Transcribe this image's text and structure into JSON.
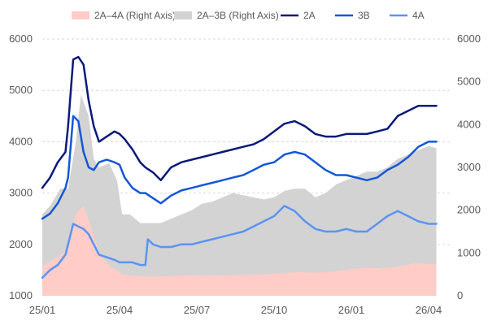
{
  "chart_data": {
    "type": "line",
    "x_ticks": [
      "25/01",
      "25/04",
      "25/07",
      "25/10",
      "26/01",
      "26/04"
    ],
    "y_left": {
      "min": 1000,
      "max": 6000,
      "ticks": [
        1000,
        2000,
        3000,
        4000,
        5000,
        6000
      ]
    },
    "y_right": {
      "min": 0,
      "max": 6000,
      "ticks": [
        0,
        1000,
        2000,
        3000,
        4000,
        5000,
        6000
      ]
    },
    "grid": "horizontal dashed",
    "legend_position": "top",
    "x_unit": "months from 25/01",
    "area_series": [
      {
        "name": "2A–4A (Right Axis)",
        "axis": "right",
        "color": "#ffccc7",
        "x": [
          0,
          0.3,
          0.6,
          1.0,
          1.3,
          1.6,
          1.9,
          2.2,
          2.6,
          2.9,
          3.1,
          3.5,
          4.0,
          4.5,
          5.0,
          5.5,
          6.0,
          6.5,
          7.0,
          7.5,
          8.0,
          8.5,
          9.0,
          9.5,
          10.0,
          10.5,
          11.0,
          11.5,
          12.0,
          12.5,
          13.0,
          13.5,
          14.0,
          14.5,
          15.0,
          15.3
        ],
        "values": [
          700,
          800,
          900,
          1100,
          1900,
          2100,
          1600,
          1000,
          700,
          600,
          500,
          470,
          450,
          450,
          460,
          480,
          470,
          470,
          480,
          480,
          490,
          500,
          520,
          540,
          550,
          540,
          550,
          580,
          620,
          650,
          640,
          660,
          700,
          760,
          740,
          740
        ]
      },
      {
        "name": "2A–3B (Right Axis)",
        "axis": "right",
        "color": "#d3d3d3",
        "x": [
          0,
          0.3,
          0.7,
          1.0,
          1.3,
          1.5,
          1.8,
          2.0,
          2.2,
          2.6,
          2.9,
          3.1,
          3.4,
          3.8,
          4.2,
          4.6,
          5.0,
          5.4,
          5.8,
          6.2,
          6.6,
          7.0,
          7.4,
          7.8,
          8.2,
          8.6,
          9.0,
          9.4,
          9.8,
          10.2,
          10.6,
          11.0,
          11.4,
          11.8,
          12.2,
          12.6,
          13.0,
          13.4,
          13.8,
          14.2,
          14.6,
          15.0,
          15.3
        ],
        "values": [
          1900,
          2100,
          2500,
          2500,
          3600,
          4700,
          4200,
          3200,
          3000,
          3100,
          2700,
          1900,
          1900,
          1700,
          1700,
          1700,
          1800,
          1900,
          2000,
          2150,
          2200,
          2300,
          2400,
          2350,
          2300,
          2250,
          2300,
          2450,
          2500,
          2500,
          2300,
          2400,
          2600,
          2700,
          2800,
          2900,
          2900,
          3000,
          3200,
          3300,
          3400,
          3500,
          3450
        ]
      }
    ],
    "series": [
      {
        "name": "2A",
        "axis": "left",
        "color": "#0a1a7a",
        "x": [
          0,
          0.3,
          0.6,
          0.9,
          1.0,
          1.2,
          1.4,
          1.6,
          1.8,
          2.0,
          2.2,
          2.5,
          2.8,
          3.0,
          3.2,
          3.5,
          3.8,
          4.0,
          4.3,
          4.6,
          5.0,
          5.4,
          5.8,
          6.2,
          6.6,
          7.0,
          7.4,
          7.8,
          8.2,
          8.6,
          9.0,
          9.4,
          9.8,
          10.2,
          10.6,
          11.0,
          11.4,
          11.8,
          12.2,
          12.6,
          13.0,
          13.4,
          13.8,
          14.2,
          14.6,
          15.0,
          15.3
        ],
        "values": [
          3100,
          3300,
          3600,
          3800,
          4300,
          5600,
          5650,
          5500,
          4800,
          4300,
          4000,
          4100,
          4200,
          4150,
          4050,
          3850,
          3600,
          3500,
          3400,
          3250,
          3500,
          3600,
          3650,
          3700,
          3750,
          3800,
          3850,
          3900,
          3950,
          4050,
          4200,
          4350,
          4400,
          4300,
          4150,
          4100,
          4100,
          4150,
          4150,
          4150,
          4200,
          4250,
          4500,
          4600,
          4700,
          4700,
          4700
        ]
      },
      {
        "name": "3B",
        "axis": "left",
        "color": "#1457d9",
        "x": [
          0,
          0.3,
          0.6,
          0.9,
          1.0,
          1.2,
          1.4,
          1.6,
          1.8,
          2.0,
          2.2,
          2.5,
          2.8,
          3.0,
          3.2,
          3.5,
          3.8,
          4.0,
          4.3,
          4.6,
          5.0,
          5.4,
          5.8,
          6.2,
          6.6,
          7.0,
          7.4,
          7.8,
          8.2,
          8.6,
          9.0,
          9.4,
          9.8,
          10.2,
          10.6,
          11.0,
          11.4,
          11.8,
          12.2,
          12.6,
          13.0,
          13.4,
          13.8,
          14.2,
          14.6,
          15.0,
          15.3
        ],
        "values": [
          2500,
          2600,
          2800,
          3100,
          3300,
          4500,
          4400,
          3800,
          3500,
          3450,
          3600,
          3650,
          3600,
          3550,
          3300,
          3100,
          3000,
          3000,
          2900,
          2800,
          2950,
          3050,
          3100,
          3150,
          3200,
          3250,
          3300,
          3350,
          3450,
          3550,
          3600,
          3750,
          3800,
          3750,
          3600,
          3450,
          3350,
          3350,
          3300,
          3250,
          3300,
          3450,
          3550,
          3700,
          3900,
          4000,
          4000
        ]
      },
      {
        "name": "4A",
        "axis": "left",
        "color": "#5b94f2",
        "x": [
          0,
          0.3,
          0.6,
          0.9,
          1.0,
          1.2,
          1.4,
          1.6,
          1.8,
          2.0,
          2.2,
          2.5,
          2.8,
          3.0,
          3.2,
          3.5,
          3.8,
          4.0,
          4.1,
          4.3,
          4.6,
          5.0,
          5.4,
          5.8,
          6.2,
          6.6,
          7.0,
          7.4,
          7.8,
          8.2,
          8.6,
          9.0,
          9.4,
          9.8,
          10.2,
          10.6,
          11.0,
          11.4,
          11.8,
          12.2,
          12.6,
          13.0,
          13.4,
          13.8,
          14.2,
          14.6,
          15.0,
          15.3
        ],
        "values": [
          1350,
          1500,
          1600,
          1800,
          2000,
          2400,
          2350,
          2300,
          2200,
          2000,
          1800,
          1750,
          1700,
          1650,
          1650,
          1650,
          1600,
          1600,
          2100,
          2000,
          1950,
          1950,
          2000,
          2000,
          2050,
          2100,
          2150,
          2200,
          2250,
          2350,
          2450,
          2550,
          2750,
          2650,
          2450,
          2300,
          2250,
          2250,
          2300,
          2250,
          2250,
          2400,
          2550,
          2650,
          2550,
          2450,
          2400,
          2400
        ]
      }
    ]
  }
}
